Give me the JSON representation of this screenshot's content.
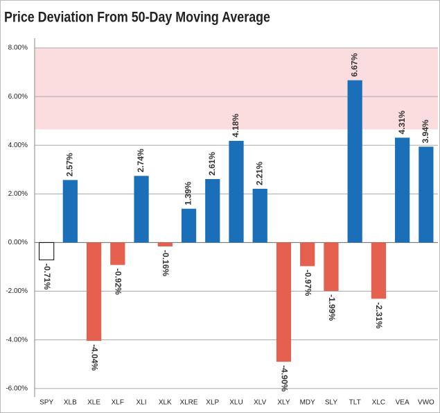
{
  "chart_data": {
    "type": "bar",
    "title": "Price Deviation From 50-Day Moving Average",
    "categories": [
      "SPY",
      "XLB",
      "XLE",
      "XLF",
      "XLI",
      "XLK",
      "XLRE",
      "XLP",
      "XLU",
      "XLV",
      "XLY",
      "MDY",
      "SLY",
      "TLT",
      "XLC",
      "VEA",
      "VWO"
    ],
    "values": [
      -0.71,
      2.57,
      -4.04,
      -0.92,
      2.74,
      -0.16,
      1.39,
      2.61,
      4.18,
      2.21,
      -4.9,
      -0.97,
      -1.99,
      6.67,
      -2.31,
      4.31,
      3.94
    ],
    "value_labels": [
      "-0.71%",
      "2.57%",
      "-4.04%",
      "-0.92%",
      "2.74%",
      "-0.16%",
      "1.39%",
      "2.61%",
      "4.18%",
      "2.21%",
      "-4.90%",
      "-0.97%",
      "-1.99%",
      "6.67%",
      "-2.31%",
      "4.31%",
      "3.94%"
    ],
    "colors": [
      "#ffffff",
      "#1b6fb8",
      "#e5604f",
      "#e5604f",
      "#1b6fb8",
      "#e5604f",
      "#1b6fb8",
      "#1b6fb8",
      "#1b6fb8",
      "#1b6fb8",
      "#e5604f",
      "#e5604f",
      "#e5604f",
      "#1b6fb8",
      "#e5604f",
      "#1b6fb8",
      "#1b6fb8"
    ],
    "band": {
      "from": 4.65,
      "to": 8,
      "color": "#fbdcdf"
    },
    "ylim": [
      -6.35,
      8.4
    ],
    "yticks": [
      {
        "value": -6,
        "label": "-6.00%"
      },
      {
        "value": -4,
        "label": "-4.00%"
      },
      {
        "value": -2,
        "label": "-2.00%"
      },
      {
        "value": 0,
        "label": "0.00%"
      },
      {
        "value": 2,
        "label": "2.00%"
      },
      {
        "value": 4,
        "label": "4.00%"
      },
      {
        "value": 6,
        "label": "6.00%"
      },
      {
        "value": 8,
        "label": "8.00%"
      }
    ],
    "grid": true
  }
}
